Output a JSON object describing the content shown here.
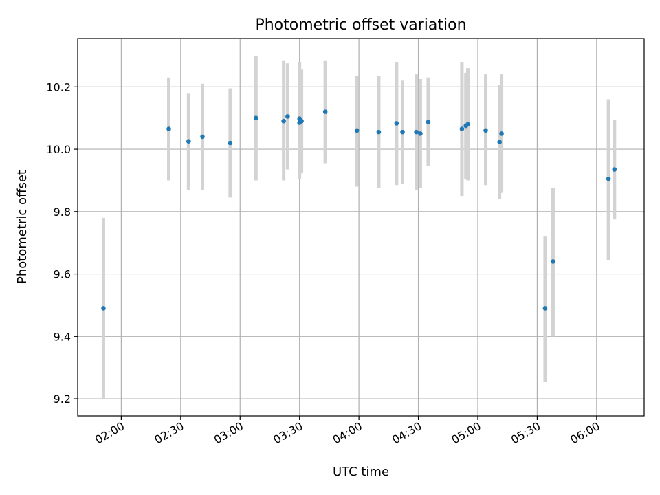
{
  "chart_data": {
    "type": "scatter",
    "title": "Photometric offset variation",
    "xlabel": "UTC time",
    "ylabel": "Photometric offset",
    "x_unit": "UTC time (HH:MM)",
    "xlim": [
      "01:38",
      "06:24"
    ],
    "ylim": [
      9.145,
      10.355
    ],
    "x_ticks": [
      "02:00",
      "02:30",
      "03:00",
      "03:30",
      "04:00",
      "04:30",
      "05:00",
      "05:30",
      "06:00"
    ],
    "y_ticks": [
      9.2,
      9.4,
      9.6,
      9.8,
      10.0,
      10.2
    ],
    "y_tick_labels": [
      "9.2",
      "9.4",
      "9.6",
      "9.8",
      "10.0",
      "10.2"
    ],
    "grid": true,
    "colors": {
      "marker": "#1f77b4",
      "errorbar": "#d3d3d3",
      "grid": "#b0b0b0"
    },
    "points": [
      {
        "x": "01:51",
        "y": 9.49,
        "lo": 9.2,
        "hi": 9.78
      },
      {
        "x": "02:24",
        "y": 10.065,
        "lo": 9.9,
        "hi": 10.23
      },
      {
        "x": "02:34",
        "y": 10.025,
        "lo": 9.87,
        "hi": 10.18
      },
      {
        "x": "02:41",
        "y": 10.04,
        "lo": 9.87,
        "hi": 10.21
      },
      {
        "x": "02:55",
        "y": 10.02,
        "lo": 9.845,
        "hi": 10.195
      },
      {
        "x": "03:08",
        "y": 10.1,
        "lo": 9.9,
        "hi": 10.3
      },
      {
        "x": "03:22",
        "y": 10.09,
        "lo": 9.9,
        "hi": 10.285
      },
      {
        "x": "03:24",
        "y": 10.105,
        "lo": 9.935,
        "hi": 10.275
      },
      {
        "x": "03:30",
        "y": 10.085,
        "lo": 9.905,
        "hi": 10.28
      },
      {
        "x": "03:30",
        "y": 10.098,
        "lo": 9.915,
        "hi": 10.26
      },
      {
        "x": "03:31",
        "y": 10.09,
        "lo": 9.925,
        "hi": 10.255
      },
      {
        "x": "03:43",
        "y": 10.12,
        "lo": 9.955,
        "hi": 10.285
      },
      {
        "x": "03:59",
        "y": 10.06,
        "lo": 9.88,
        "hi": 10.235
      },
      {
        "x": "04:10",
        "y": 10.055,
        "lo": 9.875,
        "hi": 10.235
      },
      {
        "x": "04:19",
        "y": 10.083,
        "lo": 9.885,
        "hi": 10.28
      },
      {
        "x": "04:22",
        "y": 10.055,
        "lo": 9.89,
        "hi": 10.22
      },
      {
        "x": "04:29",
        "y": 10.055,
        "lo": 9.87,
        "hi": 10.24
      },
      {
        "x": "04:31",
        "y": 10.05,
        "lo": 9.875,
        "hi": 10.225
      },
      {
        "x": "04:35",
        "y": 10.087,
        "lo": 9.945,
        "hi": 10.23
      },
      {
        "x": "04:52",
        "y": 10.065,
        "lo": 9.85,
        "hi": 10.28
      },
      {
        "x": "04:54",
        "y": 10.075,
        "lo": 9.905,
        "hi": 10.245
      },
      {
        "x": "04:55",
        "y": 10.08,
        "lo": 9.9,
        "hi": 10.26
      },
      {
        "x": "05:04",
        "y": 10.06,
        "lo": 9.885,
        "hi": 10.24
      },
      {
        "x": "05:11",
        "y": 10.023,
        "lo": 9.84,
        "hi": 10.205
      },
      {
        "x": "05:12",
        "y": 10.05,
        "lo": 9.86,
        "hi": 10.24
      },
      {
        "x": "05:34",
        "y": 9.49,
        "lo": 9.255,
        "hi": 9.72
      },
      {
        "x": "05:38",
        "y": 9.64,
        "lo": 9.4,
        "hi": 9.875
      },
      {
        "x": "06:06",
        "y": 9.905,
        "lo": 9.645,
        "hi": 10.16
      },
      {
        "x": "06:09",
        "y": 9.935,
        "lo": 9.775,
        "hi": 10.095
      }
    ]
  }
}
